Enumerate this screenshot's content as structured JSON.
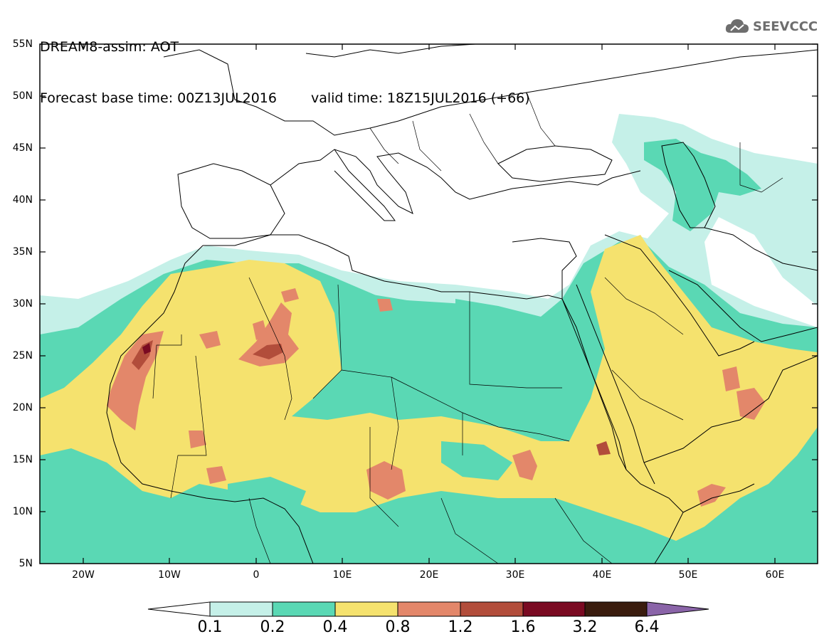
{
  "header": {
    "line1": "DREAM8-assim: AOT",
    "base_time": "Forecast base time: 00Z13JUL2016",
    "valid_time": "valid time: 18Z15JUL2016 (+66)"
  },
  "logo": {
    "text": "SEEVCCC",
    "icon": "cloud-icon"
  },
  "map": {
    "lat_labels": [
      "55N",
      "50N",
      "45N",
      "40N",
      "35N",
      "30N",
      "25N",
      "20N",
      "15N",
      "10N",
      "5N"
    ],
    "lon_labels": [
      "20W",
      "10W",
      "0",
      "10E",
      "20E",
      "30E",
      "40E",
      "50E",
      "60E"
    ],
    "extent": {
      "lon_min": -25,
      "lon_max": 65,
      "lat_min": 5,
      "lat_max": 55
    }
  },
  "colorbar": {
    "labels": [
      "0.1",
      "0.2",
      "0.4",
      "0.8",
      "1.2",
      "1.6",
      "3.2",
      "6.4"
    ],
    "colors": [
      "#ffffff",
      "#c5f0e8",
      "#5ad8b4",
      "#f5e26e",
      "#e3876a",
      "#b24d3b",
      "#7a0a22",
      "#3a1c0e",
      "#8a64a8"
    ]
  },
  "palette": {
    "c01": "#c5f0e8",
    "c02": "#5ad8b4",
    "c04": "#f5e26e",
    "c08": "#e3876a",
    "c12": "#b24d3b",
    "c16": "#7a0a22",
    "c32": "#3a1c0e"
  }
}
